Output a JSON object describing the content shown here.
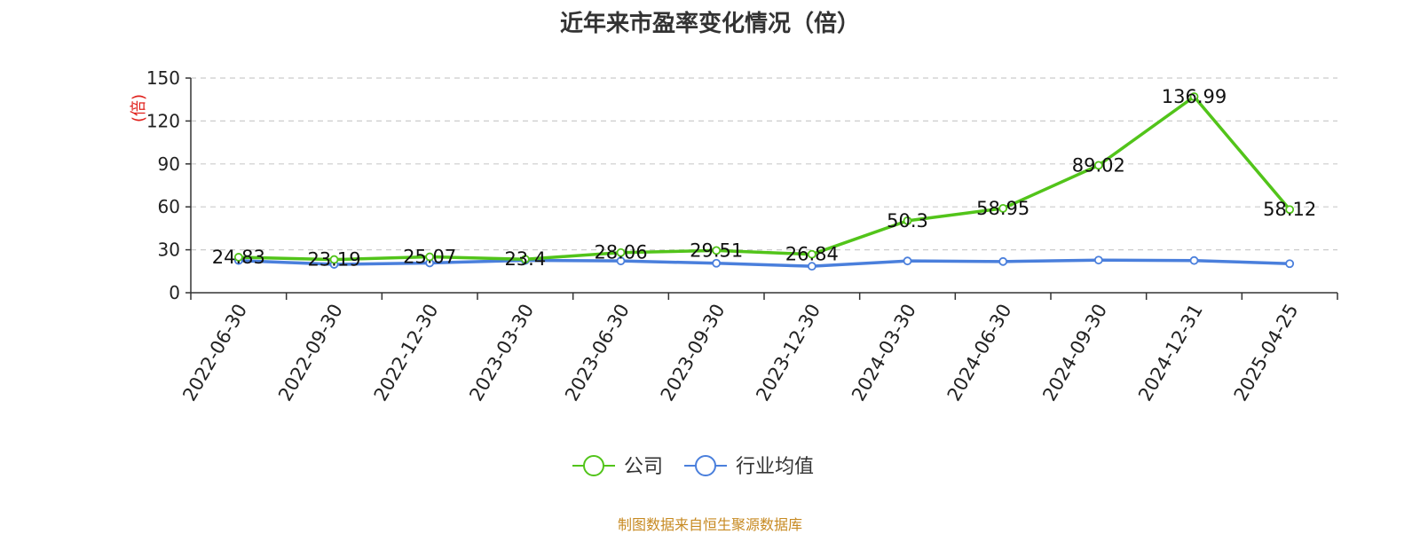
{
  "title": "近年来市盈率变化情况（倍）",
  "source_note": "制图数据来自恒生聚源数据库",
  "colors": {
    "company": "#52c41a",
    "industry": "#4a7fdc",
    "y_unit": "#e0201b",
    "grid": "#cccccc",
    "axis": "#333333",
    "source": "#c78a22"
  },
  "chart_data": {
    "type": "line",
    "title": "近年来市盈率变化情况（倍）",
    "xlabel": "",
    "ylabel": "(倍)",
    "ylim": [
      0,
      150
    ],
    "yticks": [
      0,
      30,
      60,
      90,
      120,
      150
    ],
    "grid": true,
    "legend_position": "bottom",
    "categories": [
      "2022-06-30",
      "2022-09-30",
      "2022-12-30",
      "2023-03-30",
      "2023-06-30",
      "2023-09-30",
      "2023-12-30",
      "2024-03-30",
      "2024-06-30",
      "2024-09-30",
      "2024-12-31",
      "2025-04-25"
    ],
    "series": [
      {
        "name": "公司",
        "color": "#52c41a",
        "values": [
          24.83,
          23.19,
          25.07,
          23.4,
          28.06,
          29.51,
          26.84,
          50.3,
          58.95,
          89.02,
          136.99,
          58.12
        ],
        "labels": [
          "24.83",
          "23.19",
          "25.07",
          "23.4",
          "28.06",
          "29.51",
          "26.84",
          "50.3",
          "58.95",
          "89.02",
          "136.99",
          "58.12"
        ]
      },
      {
        "name": "行业均值",
        "color": "#4a7fdc",
        "values": [
          22.5,
          19.8,
          20.8,
          22.6,
          22.2,
          20.6,
          18.5,
          22.2,
          21.8,
          22.8,
          22.5,
          20.3
        ]
      }
    ]
  }
}
